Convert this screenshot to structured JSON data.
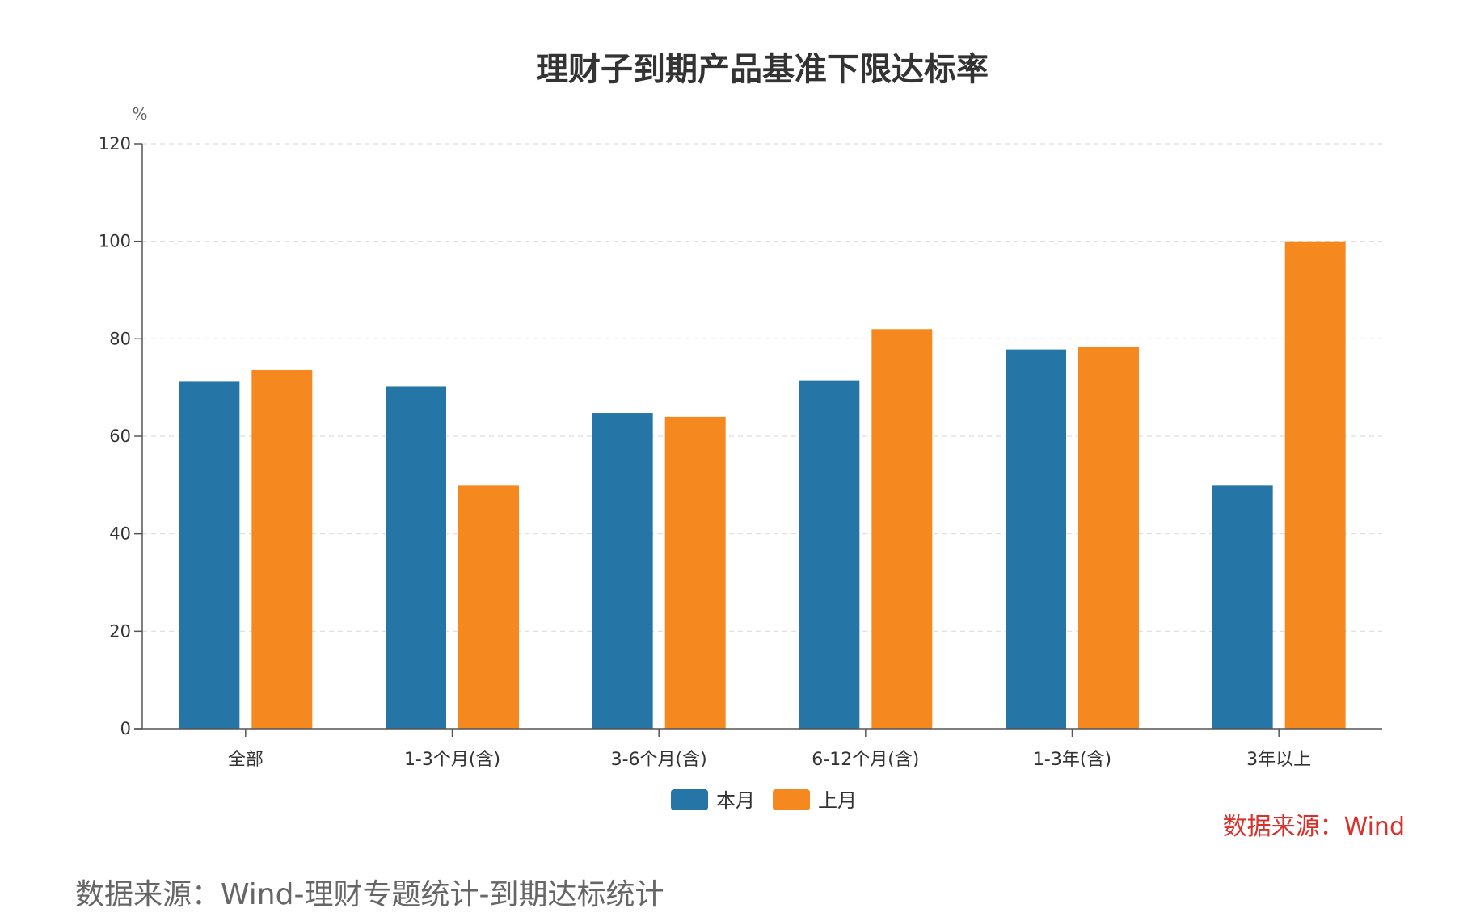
{
  "chart_data": {
    "type": "bar",
    "title": "理财子到期产品基准下限达标率",
    "ylabel": "%",
    "xlabel": "",
    "ylim": [
      0,
      120
    ],
    "yticks": [
      0,
      20,
      40,
      60,
      80,
      100,
      120
    ],
    "grid": true,
    "legend_position": "bottom-center",
    "categories": [
      "全部",
      "1-3个月(含)",
      "3-6个月(含)",
      "6-12个月(含)",
      "1-3年(含)",
      "3年以上"
    ],
    "series": [
      {
        "name": "本月",
        "color": "#2576a7",
        "values": [
          71.2,
          70.2,
          64.8,
          71.5,
          77.8,
          50.0
        ]
      },
      {
        "name": "上月",
        "color": "#f5881f",
        "values": [
          73.6,
          50.0,
          64.0,
          82.0,
          78.3,
          100.0
        ]
      }
    ],
    "source_note": "数据来源：Wind"
  },
  "footnote": "数据来源：Wind-理财专题统计-到期达标统计"
}
